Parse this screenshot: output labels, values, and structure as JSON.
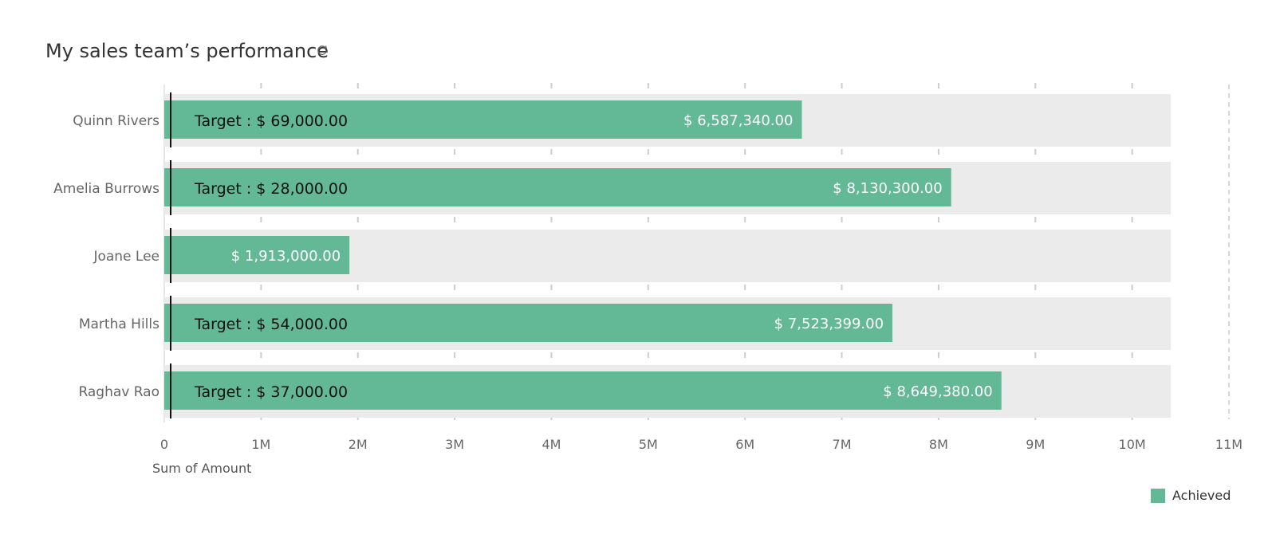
{
  "title": "My sales team’s performance",
  "colors": {
    "achieved": "#63b995",
    "track": "#ebebeb",
    "target_line": "#111111",
    "tick": "#cccccc"
  },
  "chart_data": {
    "type": "bar",
    "orientation": "horizontal",
    "categories": [
      "Quinn Rivers",
      "Amelia Burrows",
      "Joane Lee",
      "Martha Hills",
      "Raghav Rao"
    ],
    "series": [
      {
        "name": "Achieved",
        "values": [
          6587340,
          8130300,
          1913000,
          7523399,
          8649380
        ],
        "value_labels": [
          "$ 6,587,340.00",
          "$ 8,130,300.00",
          "$ 1,913,000.00",
          "$ 7,523,399.00",
          "$ 8,649,380.00"
        ]
      }
    ],
    "targets": [
      69000,
      28000,
      0,
      54000,
      37000
    ],
    "target_labels": [
      "Target : $ 69,000.00",
      "Target : $ 28,000.00",
      "",
      "Target : $ 54,000.00",
      "Target : $ 37,000.00"
    ],
    "xlabel": "Sum of Amount",
    "ylabel": "",
    "xlim": [
      0,
      11000000
    ],
    "track_max": 10400000,
    "xticks": [
      0,
      1000000,
      2000000,
      3000000,
      4000000,
      5000000,
      6000000,
      7000000,
      8000000,
      9000000,
      10000000,
      11000000
    ],
    "xtick_labels": [
      "0",
      "1M",
      "2M",
      "3M",
      "4M",
      "5M",
      "6M",
      "7M",
      "8M",
      "9M",
      "10M",
      "11M"
    ],
    "grid": false,
    "legend": {
      "position": "bottom-right",
      "entries": [
        "Achieved"
      ]
    }
  }
}
